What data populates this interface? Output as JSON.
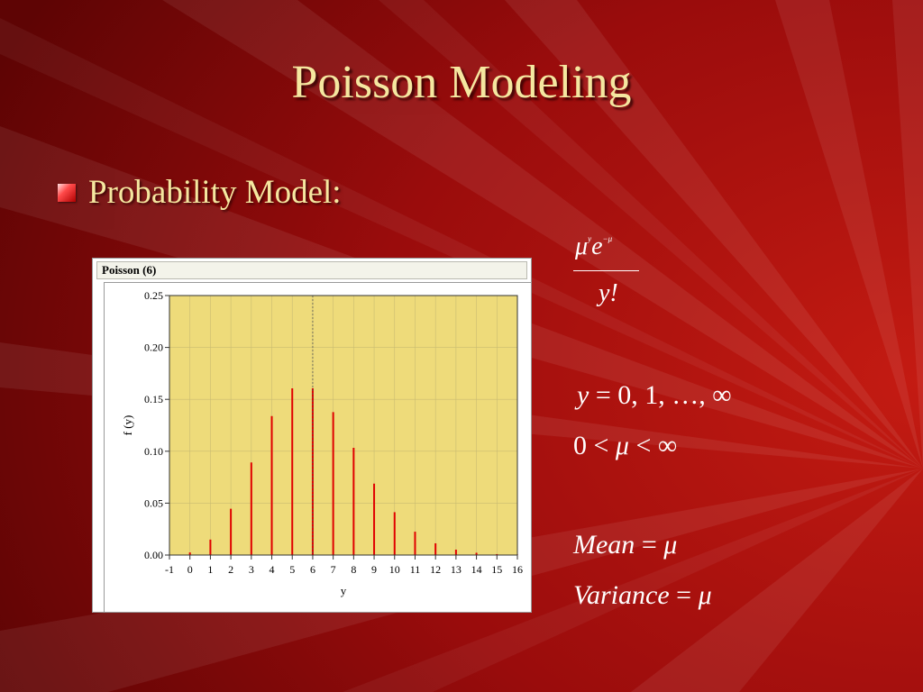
{
  "slide": {
    "title": "Poisson Modeling",
    "bullet": "Probability Model:"
  },
  "colors": {
    "background": "#8e0a0a",
    "title_text": "#f5e7a0",
    "plot_fill": "#eedb7a",
    "bar_color": "#e00000"
  },
  "formulas": {
    "numerator_base1": "μ",
    "numerator_exp1": "y",
    "numerator_base2": "e",
    "numerator_exp2": "−μ",
    "denominator": "y!",
    "support_var": "y",
    "support_rest": " = 0, 1, …, ∞",
    "param_left": "0 < ",
    "param_mu": "μ",
    "param_right": " < ∞",
    "mean_label": "Mean",
    "mean_eq": " = ",
    "mean_mu": "μ",
    "variance_label": "Variance",
    "variance_eq": " = ",
    "variance_mu": "μ"
  },
  "chart_data": {
    "type": "bar",
    "title": "Poisson (6)",
    "xlabel": "y",
    "ylabel": "f (y)",
    "x": [
      0,
      1,
      2,
      3,
      4,
      5,
      6,
      7,
      8,
      9,
      10,
      11,
      12,
      13,
      14,
      15,
      16
    ],
    "values": [
      0.0025,
      0.0149,
      0.0446,
      0.0892,
      0.1339,
      0.1606,
      0.1606,
      0.1377,
      0.1033,
      0.0688,
      0.0413,
      0.0225,
      0.0113,
      0.0052,
      0.0022,
      0.0009,
      0.0003
    ],
    "xlim": [
      -1,
      16
    ],
    "ylim": [
      0,
      0.25
    ],
    "xticks": [
      "-1",
      "0",
      "1",
      "2",
      "3",
      "4",
      "5",
      "6",
      "7",
      "8",
      "9",
      "10",
      "11",
      "12",
      "13",
      "14",
      "15",
      "16"
    ],
    "yticks": [
      "0.00",
      "0.05",
      "0.10",
      "0.15",
      "0.20",
      "0.25"
    ],
    "ytick_values": [
      0,
      0.05,
      0.1,
      0.15,
      0.2,
      0.25
    ],
    "mean_reference_line": 6,
    "grid": true
  }
}
